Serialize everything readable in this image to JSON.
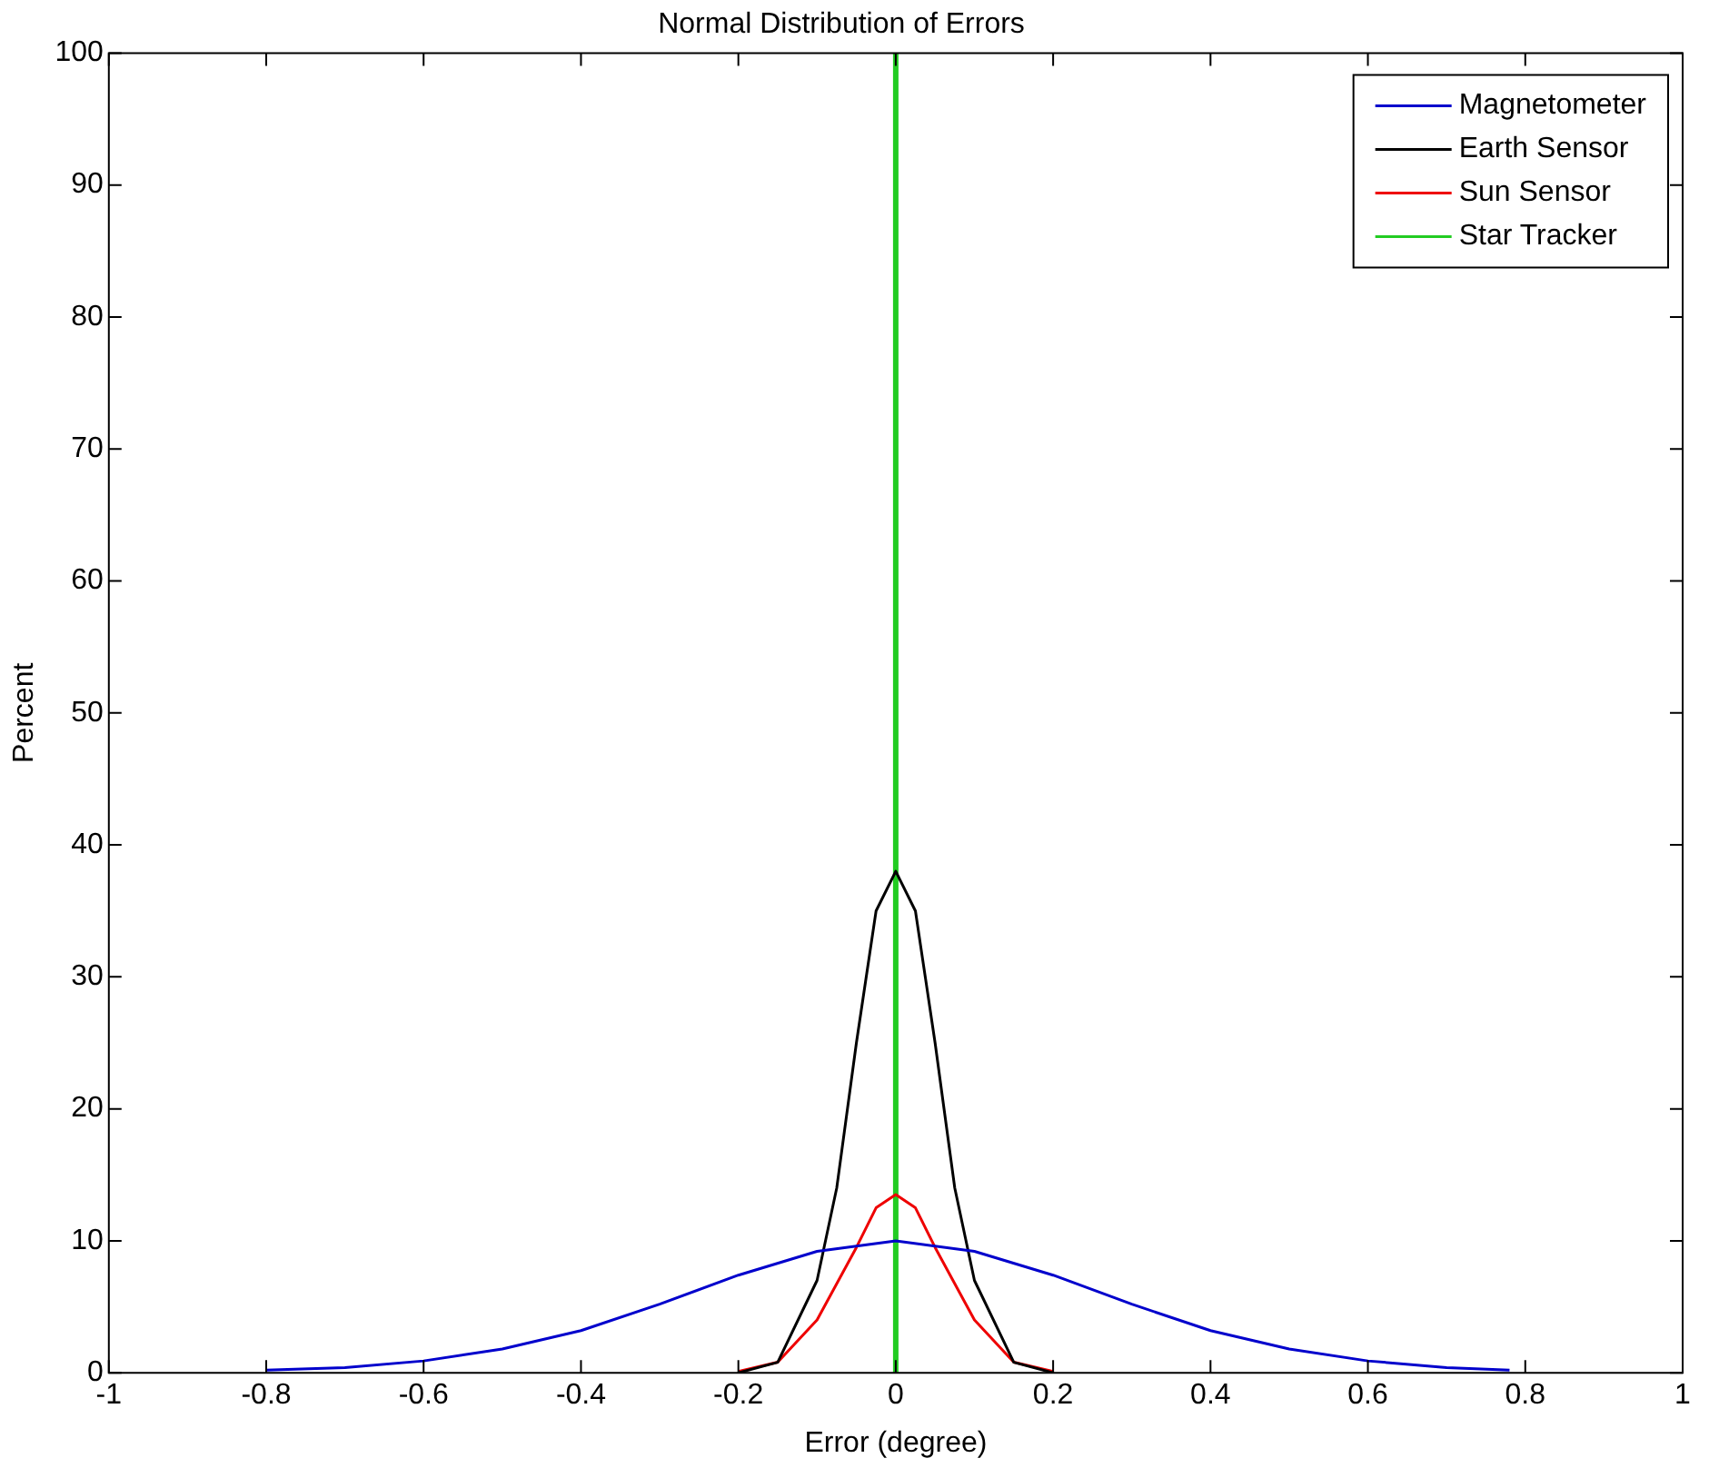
{
  "chart_data": {
    "type": "line",
    "title": "Normal Distribution of Errors",
    "xlabel": "Error (degree)",
    "ylabel": "Percent",
    "xlim": [
      -1,
      1
    ],
    "xticks": [
      -1,
      -0.8,
      -0.6,
      -0.4,
      -0.2,
      0,
      0.2,
      0.4,
      0.6,
      0.8,
      1
    ],
    "ylim": [
      0,
      100
    ],
    "yticks": [
      0,
      10,
      20,
      30,
      40,
      50,
      60,
      70,
      80,
      90,
      100
    ],
    "grid": false,
    "legend": "top right",
    "marker": "none",
    "line_style": "solid",
    "series": [
      {
        "name": "Magnetometer",
        "color": "#0000cc",
        "x": [
          -0.8,
          -0.7,
          -0.6,
          -0.5,
          -0.4,
          -0.3,
          -0.2,
          -0.1,
          0,
          0.1,
          0.2,
          0.3,
          0.4,
          0.5,
          0.6,
          0.7,
          0.78
        ],
        "values": [
          0.2,
          0.4,
          0.9,
          1.8,
          3.2,
          5.2,
          7.4,
          9.2,
          10,
          9.2,
          7.4,
          5.2,
          3.2,
          1.8,
          0.9,
          0.4,
          0.2
        ]
      },
      {
        "name": "Earth Sensor",
        "color": "#000000",
        "x": [
          -0.2,
          -0.15,
          -0.1,
          -0.075,
          -0.05,
          -0.025,
          0,
          0.025,
          0.05,
          0.075,
          0.1,
          0.15,
          0.2
        ],
        "values": [
          0,
          0.8,
          7,
          14,
          25,
          35,
          38,
          35,
          25,
          14,
          7,
          0.8,
          0
        ]
      },
      {
        "name": "Sun Sensor",
        "color": "#ee0000",
        "x": [
          -0.2,
          -0.15,
          -0.1,
          -0.05,
          -0.025,
          0,
          0.025,
          0.05,
          0.1,
          0.15,
          0.2
        ],
        "values": [
          0.1,
          0.8,
          4,
          9.5,
          12.5,
          13.5,
          12.5,
          9.5,
          4,
          0.8,
          0.1
        ]
      },
      {
        "name": "Star Tracker",
        "color": "#22cc22",
        "x": [
          0,
          0
        ],
        "values": [
          0,
          100
        ]
      }
    ]
  }
}
